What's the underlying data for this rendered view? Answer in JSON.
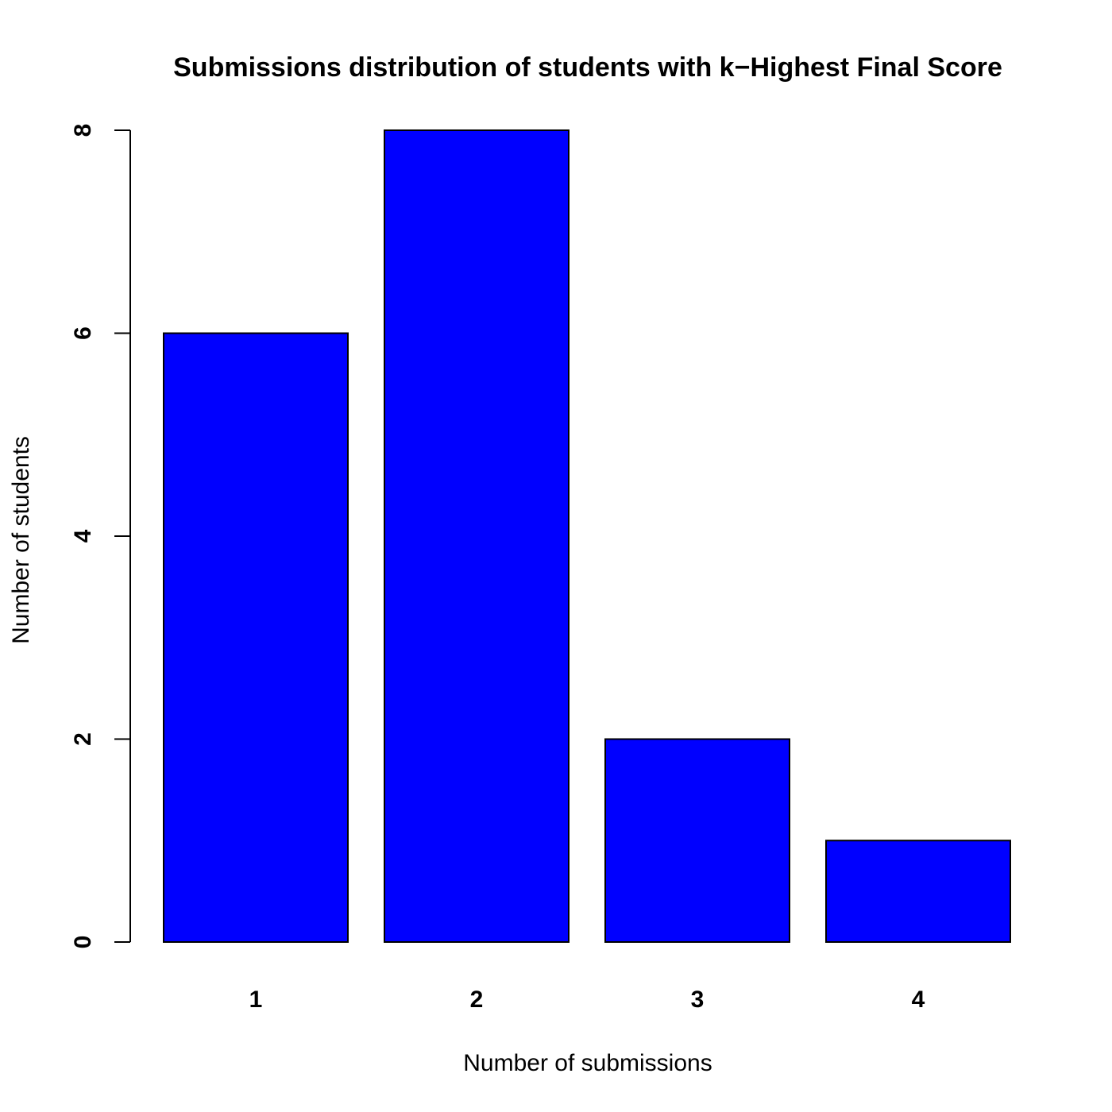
{
  "chart_data": {
    "type": "bar",
    "title": "Submissions distribution of students with k−Highest Final Score",
    "xlabel": "Number of submissions",
    "ylabel": "Number of students",
    "categories": [
      "1",
      "2",
      "3",
      "4"
    ],
    "values": [
      6,
      8,
      2,
      1
    ],
    "ylim": [
      0,
      8
    ],
    "yticks": [
      0,
      2,
      4,
      6,
      8
    ],
    "bar_color": "#0000ff",
    "grid": false,
    "legend": "none"
  }
}
